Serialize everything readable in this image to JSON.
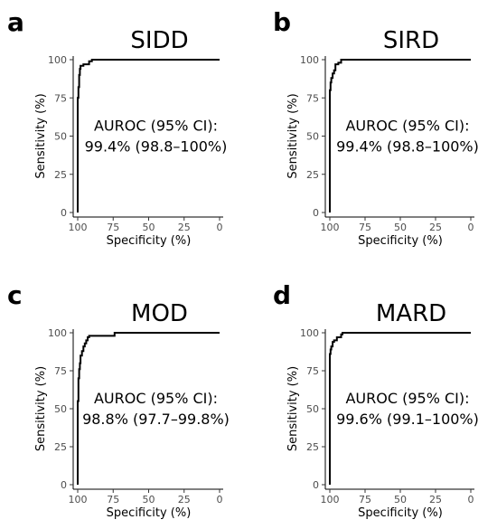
{
  "chart_data": [
    {
      "type": "line",
      "panel": "a",
      "title": "SIDD",
      "xlabel": "Specificity (%)",
      "ylabel": "Sensitivity (%)",
      "x_reversed": true,
      "xlim": [
        100,
        0
      ],
      "ylim": [
        0,
        100
      ],
      "xticks": [
        "100",
        "75",
        "50",
        "25",
        "0"
      ],
      "yticks": [
        "0",
        "25",
        "50",
        "75",
        "100"
      ],
      "grid": false,
      "annotation": [
        "AUROC (95% CI):",
        "99.4% (98.8–100%)"
      ],
      "series": [
        {
          "x": [
            100,
            100,
            99.5,
            99.5,
            99,
            99,
            98.5,
            98.5,
            98,
            98,
            96,
            96,
            92,
            92,
            90,
            90,
            0
          ],
          "y": [
            0,
            75,
            75,
            82,
            82,
            90,
            90,
            94,
            94,
            96,
            96,
            97,
            97,
            99,
            99,
            100,
            100
          ]
        }
      ]
    },
    {
      "type": "line",
      "panel": "b",
      "title": "SIRD",
      "xlabel": "Specificity (%)",
      "ylabel": "Sensitivity (%)",
      "x_reversed": true,
      "xlim": [
        100,
        0
      ],
      "ylim": [
        0,
        100
      ],
      "xticks": [
        "100",
        "75",
        "50",
        "25",
        "0"
      ],
      "yticks": [
        "0",
        "25",
        "50",
        "75",
        "100"
      ],
      "grid": false,
      "annotation": [
        "AUROC (95% CI):",
        "99.4% (98.8–100%)"
      ],
      "series": [
        {
          "x": [
            100,
            100,
            99.5,
            99.5,
            99,
            99,
            98,
            98,
            97,
            97,
            96,
            96,
            94,
            94,
            92,
            92,
            0
          ],
          "y": [
            0,
            80,
            80,
            85,
            85,
            88,
            88,
            91,
            91,
            93,
            93,
            97,
            97,
            98,
            98,
            100,
            100
          ]
        }
      ]
    },
    {
      "type": "line",
      "panel": "c",
      "title": "MOD",
      "xlabel": "Specificity (%)",
      "ylabel": "Sensitivity (%)",
      "x_reversed": true,
      "xlim": [
        100,
        0
      ],
      "ylim": [
        0,
        100
      ],
      "xticks": [
        "100",
        "75",
        "50",
        "25",
        "0"
      ],
      "yticks": [
        "0",
        "25",
        "50",
        "75",
        "100"
      ],
      "grid": false,
      "annotation": [
        "AUROC (95% CI):",
        "98.8% (97.7–99.8%)"
      ],
      "series": [
        {
          "x": [
            100,
            100,
            99.5,
            99.5,
            99,
            99,
            98.5,
            98.5,
            98,
            98,
            97,
            97,
            96,
            96,
            95,
            95,
            94,
            94,
            93,
            93,
            92,
            92,
            74,
            74,
            0
          ],
          "y": [
            0,
            55,
            55,
            70,
            70,
            76,
            76,
            80,
            80,
            85,
            85,
            88,
            88,
            91,
            91,
            93,
            93,
            95,
            95,
            97,
            97,
            98,
            98,
            100,
            100
          ]
        }
      ]
    },
    {
      "type": "line",
      "panel": "d",
      "title": "MARD",
      "xlabel": "Specificity (%)",
      "ylabel": "Sensitivity (%)",
      "x_reversed": true,
      "xlim": [
        100,
        0
      ],
      "ylim": [
        0,
        100
      ],
      "xticks": [
        "100",
        "75",
        "50",
        "25",
        "0"
      ],
      "yticks": [
        "0",
        "25",
        "50",
        "75",
        "100"
      ],
      "grid": false,
      "annotation": [
        "AUROC (95% CI):",
        "99.6% (99.1–100%)"
      ],
      "series": [
        {
          "x": [
            100,
            100,
            99.5,
            99.5,
            99,
            99,
            98,
            98,
            97,
            97,
            95,
            95,
            92,
            92,
            91,
            91,
            0
          ],
          "y": [
            0,
            86,
            86,
            89,
            89,
            91,
            91,
            94,
            94,
            95,
            95,
            97,
            97,
            99,
            99,
            100,
            100
          ]
        }
      ]
    }
  ]
}
